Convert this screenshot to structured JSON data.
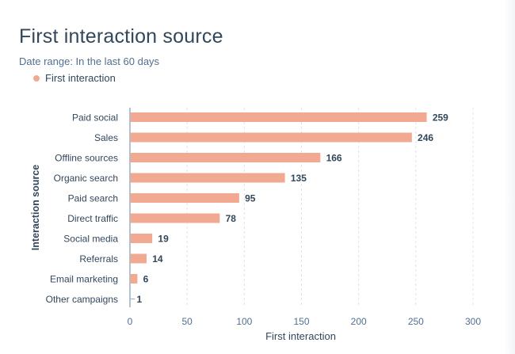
{
  "chart_data": {
    "type": "bar",
    "orientation": "horizontal",
    "title": "First interaction source",
    "subtitle": "Date range: In the last 60 days",
    "legend": [
      {
        "label": "First interaction",
        "color": "#f2a991"
      }
    ],
    "legend_position": "top-left",
    "categories": [
      "Paid social",
      "Sales",
      "Offline sources",
      "Organic search",
      "Paid search",
      "Direct traffic",
      "Social media",
      "Referrals",
      "Email marketing",
      "Other campaigns"
    ],
    "series": [
      {
        "name": "First interaction",
        "values": [
          259,
          246,
          166,
          135,
          95,
          78,
          19,
          14,
          6,
          1
        ],
        "color": "#f2a991"
      }
    ],
    "xlabel": "First interaction",
    "ylabel": "Interaction source",
    "xlim": [
      0,
      300
    ],
    "xticks": [
      "0",
      "50",
      "100",
      "150",
      "200",
      "250",
      "300"
    ],
    "grid": true,
    "data_labels": true
  },
  "colors": {
    "text": "#33475b",
    "subtext": "#516f90",
    "axis": "#99afc4",
    "grid": "#dfe3eb",
    "bar": "#f2a991"
  }
}
